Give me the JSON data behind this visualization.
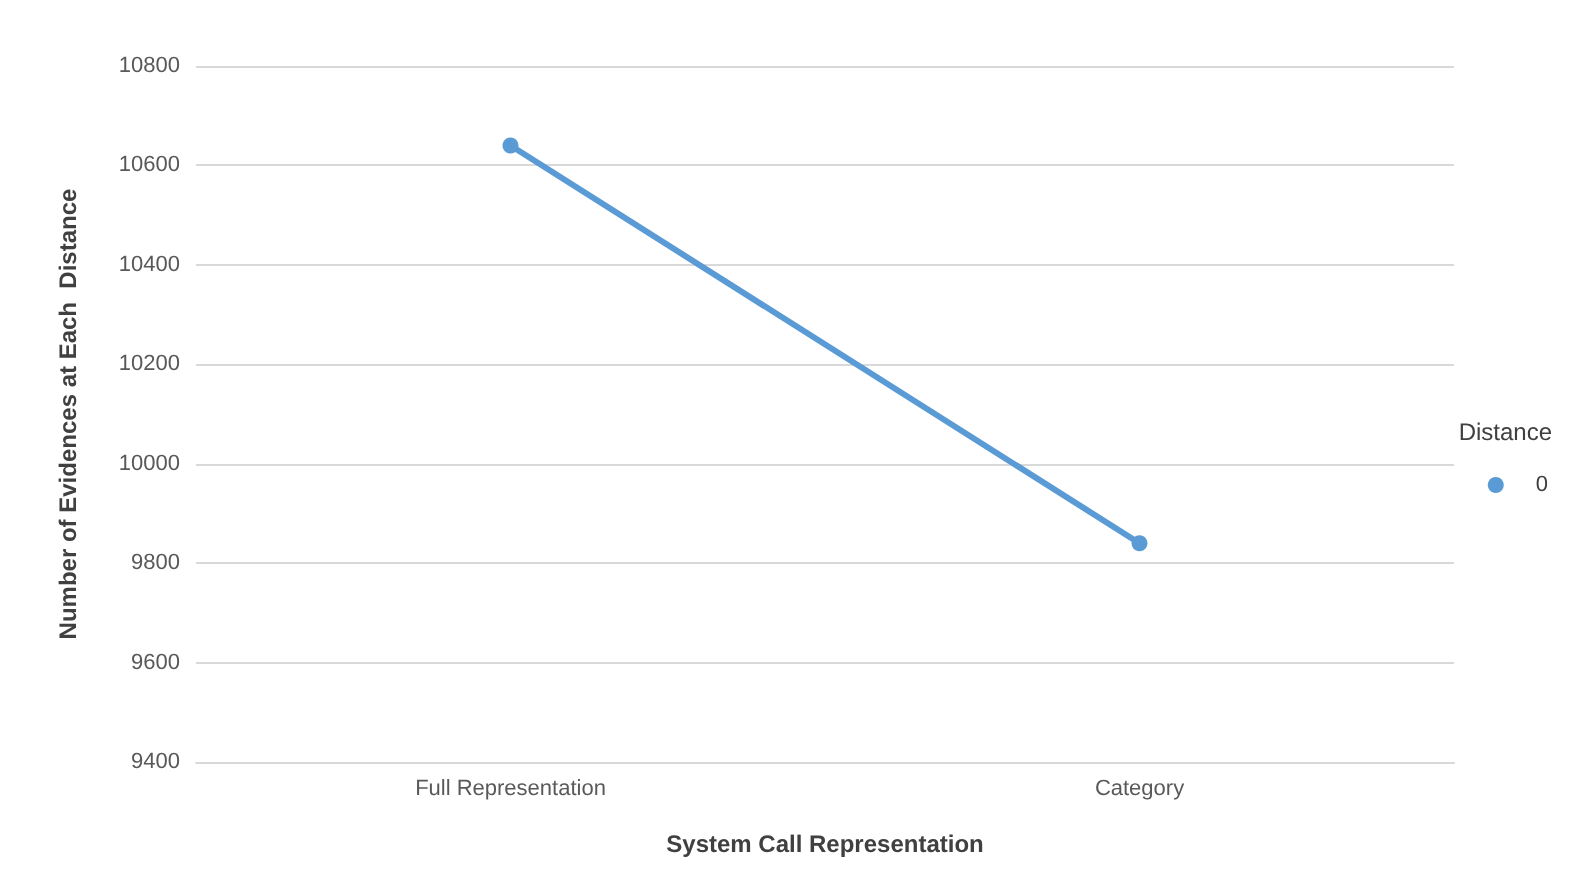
{
  "chart_data": {
    "type": "line",
    "xlabel": "System Call Representation",
    "ylabel": "Number of Evidences at Each  Distance",
    "legend_title": "Distance",
    "categories": [
      "Full Representation",
      "Category"
    ],
    "series": [
      {
        "name": "0",
        "color": "#5b9bd5",
        "values": [
          10640,
          9840
        ]
      }
    ],
    "ylim": [
      9400,
      10800
    ],
    "yticks": [
      9400,
      9600,
      9800,
      10000,
      10200,
      10400,
      10600,
      10800
    ],
    "grid": "y",
    "legend": "right",
    "marker": "circle",
    "line_style": "solid"
  }
}
